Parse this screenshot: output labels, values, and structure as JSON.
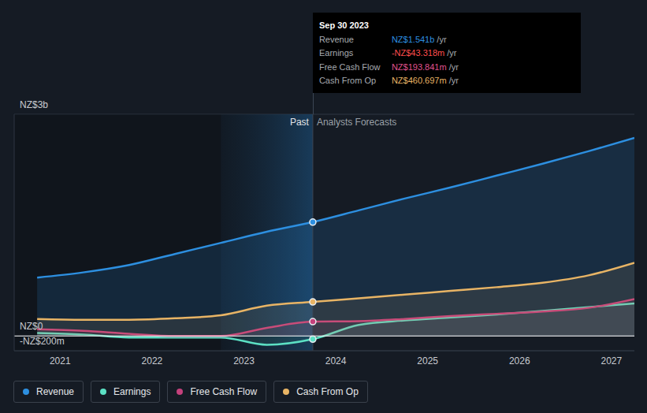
{
  "chart_data": {
    "type": "area",
    "x": [
      2020.75,
      2021.25,
      2021.75,
      2022.25,
      2022.75,
      2023.25,
      2023.75,
      2024.25,
      2024.75,
      2025.25,
      2025.75,
      2026.25,
      2026.75,
      2027.25
    ],
    "series": [
      {
        "name": "Revenue",
        "color": "#2d8fe0",
        "values": [
          790,
          860,
          960,
          1110,
          1260,
          1410,
          1541,
          1700,
          1860,
          2010,
          2170,
          2330,
          2500,
          2680
        ]
      },
      {
        "name": "Earnings",
        "color": "#5ce0c4",
        "values": [
          40,
          20,
          -20,
          -20,
          -20,
          -120,
          -43.318,
          150,
          210,
          250,
          290,
          340,
          390,
          440
        ]
      },
      {
        "name": "Free Cash Flow",
        "color": "#c4417c",
        "values": [
          90,
          70,
          30,
          0,
          0,
          110,
          193.841,
          200,
          230,
          270,
          300,
          330,
          380,
          500
        ]
      },
      {
        "name": "Cash From Op",
        "color": "#e8b465",
        "values": [
          230,
          220,
          220,
          240,
          280,
          410,
          460.697,
          510,
          560,
          610,
          660,
          720,
          820,
          990
        ]
      }
    ],
    "xlim": [
      2020.5,
      2027.25
    ],
    "xticks": [
      2021,
      2022,
      2023,
      2024,
      2025,
      2026,
      2027
    ],
    "ylim": [
      -200,
      3000
    ],
    "yticks": [
      {
        "value": -200,
        "label": "-NZ$200m"
      },
      {
        "value": 0,
        "label": "NZ$0"
      },
      {
        "value": 3000,
        "label": "NZ$3b"
      }
    ],
    "grid": true,
    "legend": "bottom",
    "annotations": [
      "Past",
      "Analysts Forecasts"
    ],
    "shaded_range": [
      2022.75,
      2023.75
    ],
    "tooltip": {
      "x": 2023.75,
      "title": "Sep 30 2023",
      "rows": [
        {
          "label": "Revenue",
          "value": "NZ$1.541b",
          "unit": "/yr",
          "color": "#2d8fe0"
        },
        {
          "label": "Earnings",
          "value": "-NZ$43.318m",
          "unit": "/yr",
          "color": "#ff4d4d"
        },
        {
          "label": "Free Cash Flow",
          "value": "NZ$193.841m",
          "unit": "/yr",
          "color": "#e0528f"
        },
        {
          "label": "Cash From Op",
          "value": "NZ$460.697m",
          "unit": "/yr",
          "color": "#e8b465"
        }
      ]
    }
  }
}
